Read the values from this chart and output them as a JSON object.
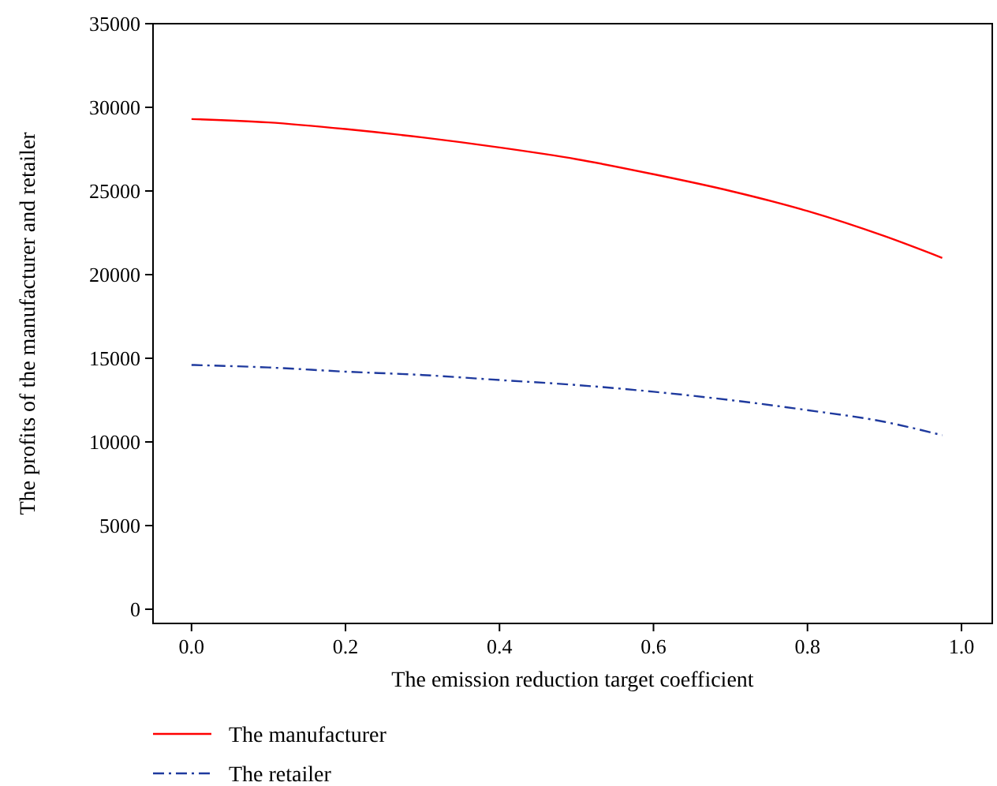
{
  "chart_data": {
    "type": "line",
    "xlabel": "The emission reduction target coefficient",
    "ylabel": "The profits of the manufacturer and retailer",
    "x": [
      0,
      0.1,
      0.2,
      0.3,
      0.4,
      0.5,
      0.6,
      0.7,
      0.8,
      0.9,
      0.975
    ],
    "series": [
      {
        "name": "The manufacturer",
        "color": "#ff0000",
        "line_style": "solid",
        "values": [
          29300,
          29100,
          28700,
          28200,
          27600,
          26900,
          26000,
          25000,
          23800,
          22300,
          21000
        ]
      },
      {
        "name": "The retailer",
        "color": "#1f3a9e",
        "line_style": "dashdot",
        "values": [
          14600,
          14450,
          14200,
          14000,
          13700,
          13400,
          13000,
          12500,
          11900,
          11200,
          10400
        ]
      }
    ],
    "xlim": [
      -0.05,
      1.04
    ],
    "ylim": [
      -850,
      35000
    ],
    "xticks": [
      {
        "value": 0,
        "label": "0.0"
      },
      {
        "value": 0.2,
        "label": "0.2"
      },
      {
        "value": 0.4,
        "label": "0.4"
      },
      {
        "value": 0.6,
        "label": "0.6"
      },
      {
        "value": 0.8,
        "label": "0.8"
      },
      {
        "value": 1,
        "label": "1.0"
      }
    ],
    "yticks": [
      0,
      5000,
      10000,
      15000,
      20000,
      25000,
      30000,
      35000
    ],
    "grid": false,
    "legend": "bottom",
    "marker": "none"
  }
}
